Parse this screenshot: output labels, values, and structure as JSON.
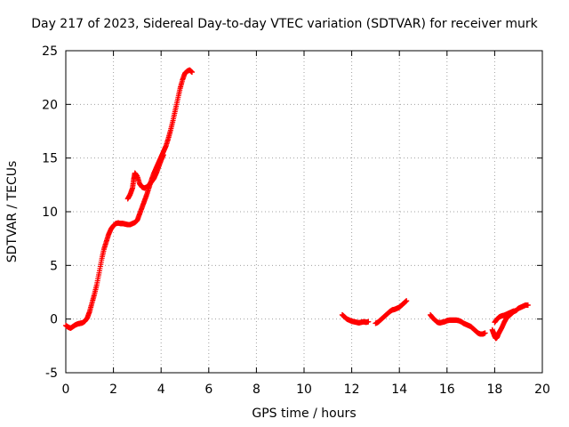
{
  "chart_data": {
    "type": "scatter",
    "title": "Day 217 of 2023, Sidereal Day-to-day VTEC variation (SDTVAR) for receiver murk",
    "xlabel": "GPS time / hours",
    "ylabel": "SDTVAR / TECUs",
    "xlim": [
      0,
      20
    ],
    "ylim": [
      -5,
      25
    ],
    "xticks": [
      0,
      2,
      4,
      6,
      8,
      10,
      12,
      14,
      16,
      18,
      20
    ],
    "yticks": [
      -5,
      0,
      5,
      10,
      15,
      20,
      25
    ],
    "grid": true,
    "marker": "+",
    "series": [
      {
        "name": "SDTVAR",
        "color": "#ff0000",
        "segments": [
          [
            [
              0.0,
              -0.6
            ],
            [
              0.1,
              -0.75
            ],
            [
              0.2,
              -0.85
            ],
            [
              0.3,
              -0.7
            ],
            [
              0.4,
              -0.55
            ],
            [
              0.5,
              -0.45
            ],
            [
              0.6,
              -0.4
            ],
            [
              0.7,
              -0.35
            ],
            [
              0.8,
              -0.2
            ],
            [
              0.9,
              0.1
            ],
            [
              1.0,
              0.7
            ],
            [
              1.1,
              1.5
            ],
            [
              1.2,
              2.3
            ],
            [
              1.3,
              3.2
            ],
            [
              1.4,
              4.3
            ],
            [
              1.5,
              5.5
            ],
            [
              1.6,
              6.5
            ],
            [
              1.7,
              7.2
            ],
            [
              1.8,
              7.9
            ],
            [
              1.9,
              8.4
            ],
            [
              2.0,
              8.7
            ],
            [
              2.1,
              8.9
            ],
            [
              2.2,
              8.95
            ],
            [
              2.3,
              8.9
            ],
            [
              2.4,
              8.9
            ],
            [
              2.5,
              8.85
            ],
            [
              2.6,
              8.8
            ],
            [
              2.7,
              8.8
            ],
            [
              2.8,
              8.9
            ],
            [
              2.9,
              9.0
            ],
            [
              3.0,
              9.2
            ],
            [
              3.1,
              9.8
            ],
            [
              3.2,
              10.4
            ],
            [
              3.3,
              11.0
            ],
            [
              3.4,
              11.6
            ],
            [
              3.5,
              12.3
            ],
            [
              3.6,
              13.0
            ],
            [
              3.7,
              13.6
            ],
            [
              3.8,
              14.1
            ],
            [
              3.9,
              14.6
            ],
            [
              4.0,
              15.1
            ],
            [
              4.1,
              15.6
            ],
            [
              4.2,
              16.1
            ],
            [
              4.3,
              16.8
            ],
            [
              4.4,
              17.6
            ],
            [
              4.5,
              18.5
            ],
            [
              4.6,
              19.5
            ],
            [
              4.7,
              20.5
            ],
            [
              4.8,
              21.5
            ],
            [
              4.9,
              22.3
            ],
            [
              5.0,
              22.9
            ],
            [
              5.1,
              23.1
            ],
            [
              5.2,
              23.2
            ],
            [
              5.3,
              23.0
            ]
          ],
          [
            [
              2.6,
              11.2
            ],
            [
              2.7,
              11.6
            ],
            [
              2.8,
              12.2
            ],
            [
              2.85,
              13.0
            ],
            [
              2.9,
              13.6
            ],
            [
              3.0,
              13.3
            ],
            [
              3.1,
              12.6
            ],
            [
              3.2,
              12.3
            ],
            [
              3.3,
              12.2
            ],
            [
              3.4,
              12.3
            ],
            [
              3.5,
              12.5
            ],
            [
              3.6,
              12.8
            ],
            [
              3.7,
              13.1
            ],
            [
              3.8,
              13.6
            ],
            [
              3.9,
              14.2
            ],
            [
              4.0,
              14.8
            ],
            [
              4.1,
              15.3
            ]
          ],
          [
            [
              11.6,
              0.4
            ],
            [
              11.7,
              0.2
            ],
            [
              11.8,
              0.0
            ],
            [
              11.9,
              -0.1
            ],
            [
              12.0,
              -0.2
            ],
            [
              12.1,
              -0.25
            ],
            [
              12.2,
              -0.3
            ],
            [
              12.3,
              -0.35
            ],
            [
              12.4,
              -0.3
            ],
            [
              12.5,
              -0.25
            ],
            [
              12.6,
              -0.3
            ],
            [
              12.7,
              -0.25
            ]
          ],
          [
            [
              13.0,
              -0.4
            ],
            [
              13.1,
              -0.3
            ],
            [
              13.2,
              -0.1
            ],
            [
              13.3,
              0.1
            ],
            [
              13.4,
              0.3
            ],
            [
              13.5,
              0.5
            ],
            [
              13.6,
              0.7
            ],
            [
              13.7,
              0.85
            ],
            [
              13.8,
              0.9
            ],
            [
              13.9,
              1.0
            ],
            [
              14.0,
              1.1
            ],
            [
              14.1,
              1.3
            ],
            [
              14.2,
              1.5
            ],
            [
              14.3,
              1.7
            ]
          ],
          [
            [
              15.3,
              0.4
            ],
            [
              15.4,
              0.1
            ],
            [
              15.5,
              -0.1
            ],
            [
              15.6,
              -0.3
            ],
            [
              15.7,
              -0.35
            ],
            [
              15.8,
              -0.3
            ],
            [
              15.9,
              -0.25
            ],
            [
              16.0,
              -0.15
            ],
            [
              16.1,
              -0.1
            ],
            [
              16.2,
              -0.1
            ],
            [
              16.3,
              -0.1
            ],
            [
              16.4,
              -0.1
            ],
            [
              16.5,
              -0.15
            ],
            [
              16.6,
              -0.25
            ],
            [
              16.7,
              -0.4
            ],
            [
              16.8,
              -0.5
            ],
            [
              16.9,
              -0.6
            ],
            [
              17.0,
              -0.7
            ],
            [
              17.1,
              -0.9
            ],
            [
              17.2,
              -1.1
            ],
            [
              17.3,
              -1.3
            ],
            [
              17.4,
              -1.4
            ],
            [
              17.5,
              -1.4
            ],
            [
              17.6,
              -1.3
            ]
          ],
          [
            [
              17.9,
              -1.0
            ],
            [
              17.95,
              -1.3
            ],
            [
              18.0,
              -1.6
            ],
            [
              18.05,
              -1.8
            ],
            [
              18.1,
              -1.7
            ],
            [
              18.15,
              -1.4
            ],
            [
              18.2,
              -1.2
            ],
            [
              18.3,
              -0.8
            ],
            [
              18.4,
              -0.3
            ],
            [
              18.5,
              0.1
            ],
            [
              18.6,
              0.3
            ],
            [
              18.7,
              0.5
            ],
            [
              18.8,
              0.7
            ],
            [
              18.9,
              0.8
            ],
            [
              19.0,
              1.0
            ],
            [
              19.1,
              1.1
            ],
            [
              19.2,
              1.2
            ],
            [
              19.3,
              1.3
            ],
            [
              19.4,
              1.3
            ]
          ],
          [
            [
              18.0,
              -0.3
            ],
            [
              18.1,
              0.0
            ],
            [
              18.2,
              0.2
            ],
            [
              18.3,
              0.3
            ],
            [
              18.4,
              0.35
            ],
            [
              18.5,
              0.45
            ],
            [
              18.6,
              0.55
            ],
            [
              18.7,
              0.65
            ],
            [
              18.8,
              0.75
            ]
          ]
        ]
      }
    ]
  }
}
